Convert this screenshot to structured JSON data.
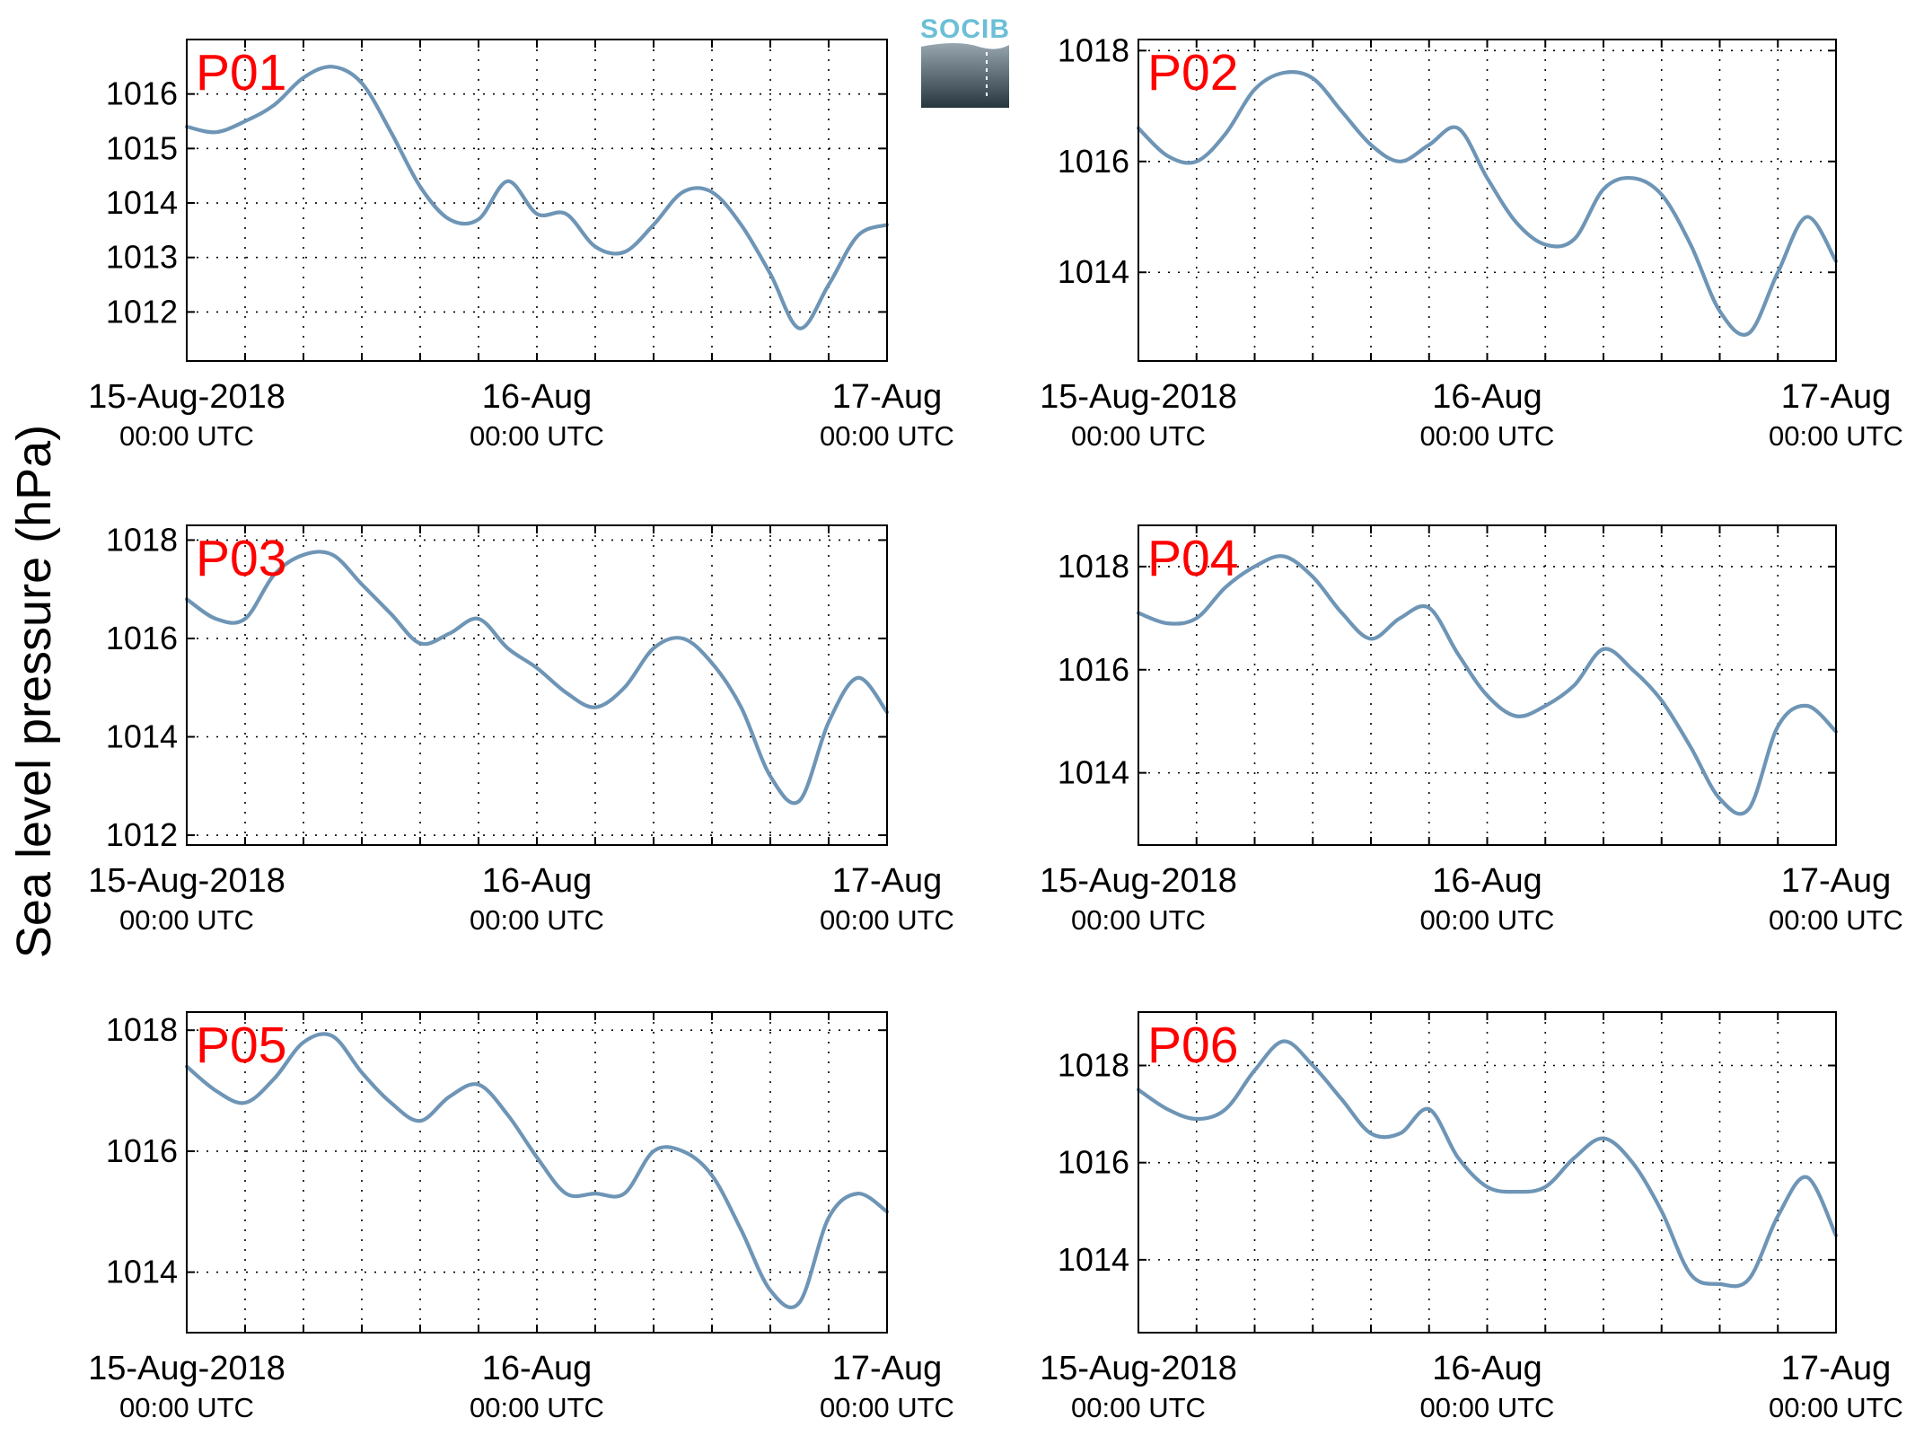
{
  "figure": {
    "ylabel": "Sea level pressure (hPa)",
    "logo": {
      "text": "SOCIB"
    },
    "colors": {
      "line": "#6e95b6",
      "panel_label": "#ff0000",
      "logo_text": "#6bbfd6",
      "logo_top": "#98a6b0",
      "logo_bottom": "#27363f"
    }
  },
  "chart_data": [
    {
      "type": "line",
      "label": "P01",
      "xlim": [
        "2018-08-15T00:00",
        "2018-08-17T00:00"
      ],
      "ylim": [
        1011.1,
        1017.0
      ],
      "yticks": [
        1012,
        1013,
        1014,
        1015,
        1016
      ],
      "xtick_labels": [
        {
          "date": "15-Aug-2018",
          "time": "00:00 UTC"
        },
        {
          "date": "16-Aug",
          "time": "00:00 UTC"
        },
        {
          "date": "17-Aug",
          "time": "00:00 UTC"
        }
      ],
      "grid": true,
      "x_hours": [
        0,
        2,
        4,
        6,
        8,
        10,
        12,
        14,
        16,
        18,
        20,
        22,
        24,
        26,
        28,
        30,
        32,
        34,
        36,
        38,
        40,
        42,
        44,
        46,
        48
      ],
      "y": [
        1015.4,
        1015.3,
        1015.5,
        1015.8,
        1016.3,
        1016.5,
        1016.2,
        1015.3,
        1014.3,
        1013.7,
        1013.7,
        1014.4,
        1013.8,
        1013.8,
        1013.2,
        1013.1,
        1013.6,
        1014.2,
        1014.2,
        1013.6,
        1012.7,
        1011.7,
        1012.5,
        1013.4,
        1013.6
      ]
    },
    {
      "type": "line",
      "label": "P02",
      "xlim": [
        "2018-08-15T00:00",
        "2018-08-17T00:00"
      ],
      "ylim": [
        1012.4,
        1018.2
      ],
      "yticks": [
        1014,
        1016,
        1018
      ],
      "xtick_labels": [
        {
          "date": "15-Aug-2018",
          "time": "00:00 UTC"
        },
        {
          "date": "16-Aug",
          "time": "00:00 UTC"
        },
        {
          "date": "17-Aug",
          "time": "00:00 UTC"
        }
      ],
      "grid": true,
      "x_hours": [
        0,
        2,
        4,
        6,
        8,
        10,
        12,
        14,
        16,
        18,
        20,
        22,
        24,
        26,
        28,
        30,
        32,
        34,
        36,
        38,
        40,
        42,
        44,
        46,
        48
      ],
      "y": [
        1016.6,
        1016.1,
        1016.0,
        1016.5,
        1017.3,
        1017.6,
        1017.5,
        1016.9,
        1016.3,
        1016.0,
        1016.3,
        1016.6,
        1015.7,
        1014.9,
        1014.5,
        1014.6,
        1015.5,
        1015.7,
        1015.4,
        1014.5,
        1013.3,
        1012.9,
        1014.0,
        1015.0,
        1014.2
      ]
    },
    {
      "type": "line",
      "label": "P03",
      "xlim": [
        "2018-08-15T00:00",
        "2018-08-17T00:00"
      ],
      "ylim": [
        1011.8,
        1018.3
      ],
      "yticks": [
        1012,
        1014,
        1016,
        1018
      ],
      "xtick_labels": [
        {
          "date": "15-Aug-2018",
          "time": "00:00 UTC"
        },
        {
          "date": "16-Aug",
          "time": "00:00 UTC"
        },
        {
          "date": "17-Aug",
          "time": "00:00 UTC"
        }
      ],
      "grid": true,
      "x_hours": [
        0,
        2,
        4,
        6,
        8,
        10,
        12,
        14,
        16,
        18,
        20,
        22,
        24,
        26,
        28,
        30,
        32,
        34,
        36,
        38,
        40,
        42,
        44,
        46,
        48
      ],
      "y": [
        1016.8,
        1016.4,
        1016.4,
        1017.3,
        1017.7,
        1017.7,
        1017.1,
        1016.5,
        1015.9,
        1016.1,
        1016.4,
        1015.8,
        1015.4,
        1014.9,
        1014.6,
        1015.0,
        1015.8,
        1016.0,
        1015.5,
        1014.6,
        1013.2,
        1012.7,
        1014.3,
        1015.2,
        1014.5
      ]
    },
    {
      "type": "line",
      "label": "P04",
      "xlim": [
        "2018-08-15T00:00",
        "2018-08-17T00:00"
      ],
      "ylim": [
        1012.6,
        1018.8
      ],
      "yticks": [
        1014,
        1016,
        1018
      ],
      "xtick_labels": [
        {
          "date": "15-Aug-2018",
          "time": "00:00 UTC"
        },
        {
          "date": "16-Aug",
          "time": "00:00 UTC"
        },
        {
          "date": "17-Aug",
          "time": "00:00 UTC"
        }
      ],
      "grid": true,
      "x_hours": [
        0,
        2,
        4,
        6,
        8,
        10,
        12,
        14,
        16,
        18,
        20,
        22,
        24,
        26,
        28,
        30,
        32,
        34,
        36,
        38,
        40,
        42,
        44,
        46,
        48
      ],
      "y": [
        1017.1,
        1016.9,
        1017.0,
        1017.6,
        1018.0,
        1018.2,
        1017.8,
        1017.1,
        1016.6,
        1017.0,
        1017.2,
        1016.3,
        1015.5,
        1015.1,
        1015.3,
        1015.7,
        1016.4,
        1016.0,
        1015.4,
        1014.5,
        1013.5,
        1013.3,
        1014.9,
        1015.3,
        1014.8
      ]
    },
    {
      "type": "line",
      "label": "P05",
      "xlim": [
        "2018-08-15T00:00",
        "2018-08-17T00:00"
      ],
      "ylim": [
        1013.0,
        1018.3
      ],
      "yticks": [
        1014,
        1016,
        1018
      ],
      "xtick_labels": [
        {
          "date": "15-Aug-2018",
          "time": "00:00 UTC"
        },
        {
          "date": "16-Aug",
          "time": "00:00 UTC"
        },
        {
          "date": "17-Aug",
          "time": "00:00 UTC"
        }
      ],
      "grid": true,
      "x_hours": [
        0,
        2,
        4,
        6,
        8,
        10,
        12,
        14,
        16,
        18,
        20,
        22,
        24,
        26,
        28,
        30,
        32,
        34,
        36,
        38,
        40,
        42,
        44,
        46,
        48
      ],
      "y": [
        1017.4,
        1017.0,
        1016.8,
        1017.2,
        1017.8,
        1017.9,
        1017.3,
        1016.8,
        1016.5,
        1016.9,
        1017.1,
        1016.6,
        1015.9,
        1015.3,
        1015.3,
        1015.3,
        1016.0,
        1016.0,
        1015.6,
        1014.7,
        1013.7,
        1013.5,
        1014.9,
        1015.3,
        1015.0
      ]
    },
    {
      "type": "line",
      "label": "P06",
      "xlim": [
        "2018-08-15T00:00",
        "2018-08-17T00:00"
      ],
      "ylim": [
        1012.5,
        1019.1
      ],
      "yticks": [
        1014,
        1016,
        1018
      ],
      "xtick_labels": [
        {
          "date": "15-Aug-2018",
          "time": "00:00 UTC"
        },
        {
          "date": "16-Aug",
          "time": "00:00 UTC"
        },
        {
          "date": "17-Aug",
          "time": "00:00 UTC"
        }
      ],
      "grid": true,
      "x_hours": [
        0,
        2,
        4,
        6,
        8,
        10,
        12,
        14,
        16,
        18,
        20,
        22,
        24,
        26,
        28,
        30,
        32,
        34,
        36,
        38,
        40,
        42,
        44,
        46,
        48
      ],
      "y": [
        1017.5,
        1017.1,
        1016.9,
        1017.1,
        1017.9,
        1018.5,
        1018.0,
        1017.3,
        1016.6,
        1016.6,
        1017.1,
        1016.1,
        1015.5,
        1015.4,
        1015.5,
        1016.1,
        1016.5,
        1016.0,
        1015.0,
        1013.7,
        1013.5,
        1013.6,
        1014.9,
        1015.7,
        1014.5
      ]
    }
  ]
}
